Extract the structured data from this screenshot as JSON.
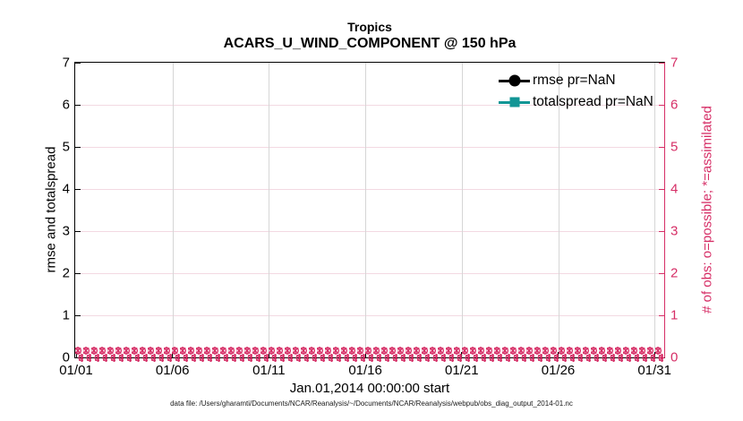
{
  "colors": {
    "magenta": "#d62e66",
    "teal": "#129595",
    "grid-pink": "#f3d9e2",
    "grid-gray": "#d6d6d6",
    "text": "#000000"
  },
  "footer": {
    "text": "data file: /Users/gharamti/Documents/NCAR/Reanalysis/~/Documents/NCAR/Reanalysis/webpub/obs_diag_output_2014-01.nc"
  },
  "chart_data": {
    "type": "line",
    "title": "Tropics",
    "subtitle": "ACARS_U_WIND_COMPONENT @ 150 hPa",
    "xlabel": "Jan.01,2014 00:00:00 start",
    "left_axis": {
      "label": "rmse and totalspread",
      "ticks": [
        0,
        1,
        2,
        3,
        4,
        5,
        6,
        7
      ],
      "lim": [
        0,
        7
      ],
      "color": "#000000"
    },
    "right_axis": {
      "label": "# of obs: o=possible; *=assimilated",
      "ticks": [
        0,
        1,
        2,
        3,
        4,
        5,
        6,
        7
      ],
      "lim": [
        0,
        7
      ],
      "color": "#d62e66"
    },
    "x_axis": {
      "tick_labels": [
        "01/01",
        "01/06",
        "01/11",
        "01/16",
        "01/21",
        "01/26",
        "01/31"
      ],
      "lim_days": [
        0,
        30.5
      ]
    },
    "legend": [
      {
        "label": "rmse pr=NaN",
        "marker": "circle",
        "color": "#000000"
      },
      {
        "label": "totalspread pr=NaN",
        "marker": "square",
        "color": "#129595"
      }
    ],
    "legend_position": "upper right inside, no box",
    "grid": {
      "vertical": "on",
      "horizontal": "on"
    },
    "series": [
      {
        "name": "rmse",
        "pr": "NaN",
        "values": "all NaN - no curve drawn"
      },
      {
        "name": "totalspread",
        "pr": "NaN",
        "values": "all NaN - no curve drawn"
      },
      {
        "name": "# of obs possible (o markers)",
        "value": 0,
        "extent": [
          "01/01",
          "01/31"
        ],
        "note": "dense magenta o markers along y=0 for every assimilation time"
      },
      {
        "name": "# of obs assimilated (* markers)",
        "value": 0,
        "extent": [
          "01/01",
          "01/31"
        ],
        "note": "dense magenta * markers along y=0 for every assimilation time"
      }
    ]
  }
}
